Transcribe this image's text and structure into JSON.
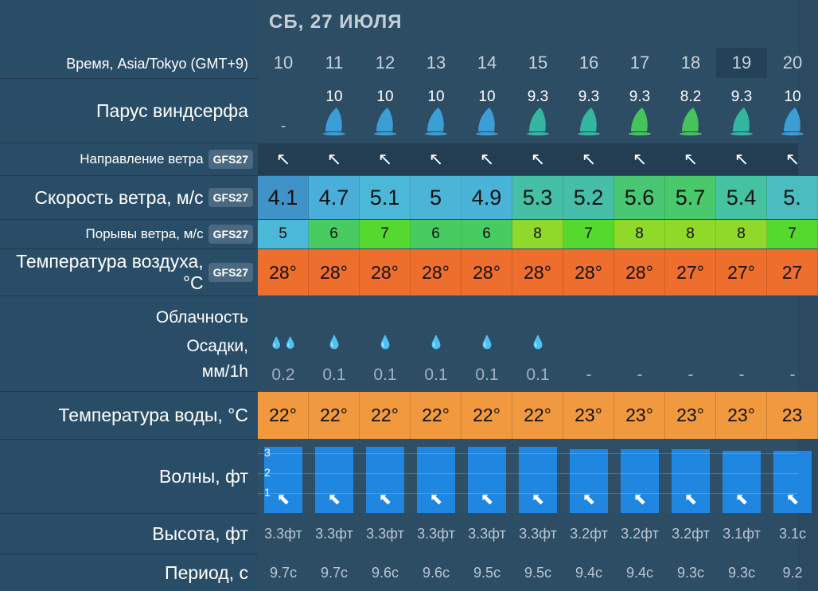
{
  "day_title": "СБ, 27 ИЮЛЯ",
  "labels": {
    "time": "Время, Asia/Tokyo (GMT+9)",
    "sail": "Парус виндсерфа",
    "wind_dir": "Направление ветра",
    "wind_speed": "Скорость ветра, м/с",
    "gusts": "Порывы ветра, м/с",
    "air_temp": "Температура воздуха, °C",
    "clouds": "Облачность",
    "precip_1": "Осадки,",
    "precip_2": "мм/1h",
    "water_temp": "Температура воды, °C",
    "waves": "Волны, фт",
    "height": "Высота, фт",
    "period": "Период, с"
  },
  "model_badge": "GFS27",
  "hours": [
    "10",
    "11",
    "12",
    "13",
    "14",
    "15",
    "16",
    "17",
    "18",
    "19",
    "20"
  ],
  "highlighted_hour_index": 9,
  "sail": [
    {
      "label": "-",
      "color": ""
    },
    {
      "label": "10",
      "color": "#3b9fd6"
    },
    {
      "label": "10",
      "color": "#3b9fd6"
    },
    {
      "label": "10",
      "color": "#3b9fd6"
    },
    {
      "label": "10",
      "color": "#3b9fd6"
    },
    {
      "label": "9.3",
      "color": "#33b7a0"
    },
    {
      "label": "9.3",
      "color": "#33b7a0"
    },
    {
      "label": "9.3",
      "color": "#46c45a"
    },
    {
      "label": "8.2",
      "color": "#46c45a"
    },
    {
      "label": "9.3",
      "color": "#33b7a0"
    },
    {
      "label": "10",
      "color": "#3b9fd6"
    }
  ],
  "wind_dir_arrows": [
    "↖",
    "↖",
    "↖",
    "↖",
    "↖",
    "↖",
    "↖",
    "↖",
    "↖",
    "↖",
    "↖"
  ],
  "wind_speed": [
    {
      "v": "4.1",
      "c": "#3f93c9"
    },
    {
      "v": "4.7",
      "c": "#4aaedb"
    },
    {
      "v": "5.1",
      "c": "#4cb8d8"
    },
    {
      "v": "5",
      "c": "#4bb5d8"
    },
    {
      "v": "4.9",
      "c": "#4ab3d8"
    },
    {
      "v": "5.3",
      "c": "#45c0a6"
    },
    {
      "v": "5.2",
      "c": "#46bea9"
    },
    {
      "v": "5.6",
      "c": "#49c772"
    },
    {
      "v": "5.7",
      "c": "#4ac86c"
    },
    {
      "v": "5.4",
      "c": "#45c3a0"
    },
    {
      "v": "5.",
      "c": "#4bbcc0"
    }
  ],
  "gusts": [
    {
      "v": "5",
      "c": "#4cb8d8"
    },
    {
      "v": "6",
      "c": "#48cc62"
    },
    {
      "v": "7",
      "c": "#55d92e"
    },
    {
      "v": "6",
      "c": "#48cc62"
    },
    {
      "v": "6",
      "c": "#48cc62"
    },
    {
      "v": "8",
      "c": "#8fd92a"
    },
    {
      "v": "7",
      "c": "#55d92e"
    },
    {
      "v": "8",
      "c": "#8fd92a"
    },
    {
      "v": "8",
      "c": "#8fd92a"
    },
    {
      "v": "8",
      "c": "#8fd92a"
    },
    {
      "v": "7",
      "c": "#55d92e"
    }
  ],
  "air_temp": [
    "28°",
    "28°",
    "28°",
    "28°",
    "28°",
    "28°",
    "28°",
    "28°",
    "27°",
    "27°",
    "27"
  ],
  "precip_icons": [
    "💧💧",
    "💧",
    "💧",
    "💧",
    "💧",
    "💧",
    "",
    "",
    "",
    "",
    ""
  ],
  "precip_values": [
    "0.2",
    "0.1",
    "0.1",
    "0.1",
    "0.1",
    "0.1",
    "-",
    "-",
    "-",
    "-",
    "-"
  ],
  "water_temp": [
    "22°",
    "22°",
    "22°",
    "22°",
    "22°",
    "22°",
    "23°",
    "23°",
    "23°",
    "23°",
    "23"
  ],
  "wave_scale": [
    "3",
    "2",
    "1"
  ],
  "wave_heights_ft": [
    3.3,
    3.3,
    3.3,
    3.3,
    3.3,
    3.3,
    3.2,
    3.2,
    3.2,
    3.1,
    3.1
  ],
  "wave_height_labels": [
    "3.3фт",
    "3.3фт",
    "3.3фт",
    "3.3фт",
    "3.3фт",
    "3.3фт",
    "3.2фт",
    "3.2фт",
    "3.2фт",
    "3.1фт",
    "3.1с"
  ],
  "period_labels": [
    "9.7с",
    "9.7с",
    "9.6с",
    "9.6с",
    "9.5с",
    "9.5с",
    "9.4с",
    "9.4с",
    "9.3с",
    "9.3с",
    "9.2"
  ]
}
